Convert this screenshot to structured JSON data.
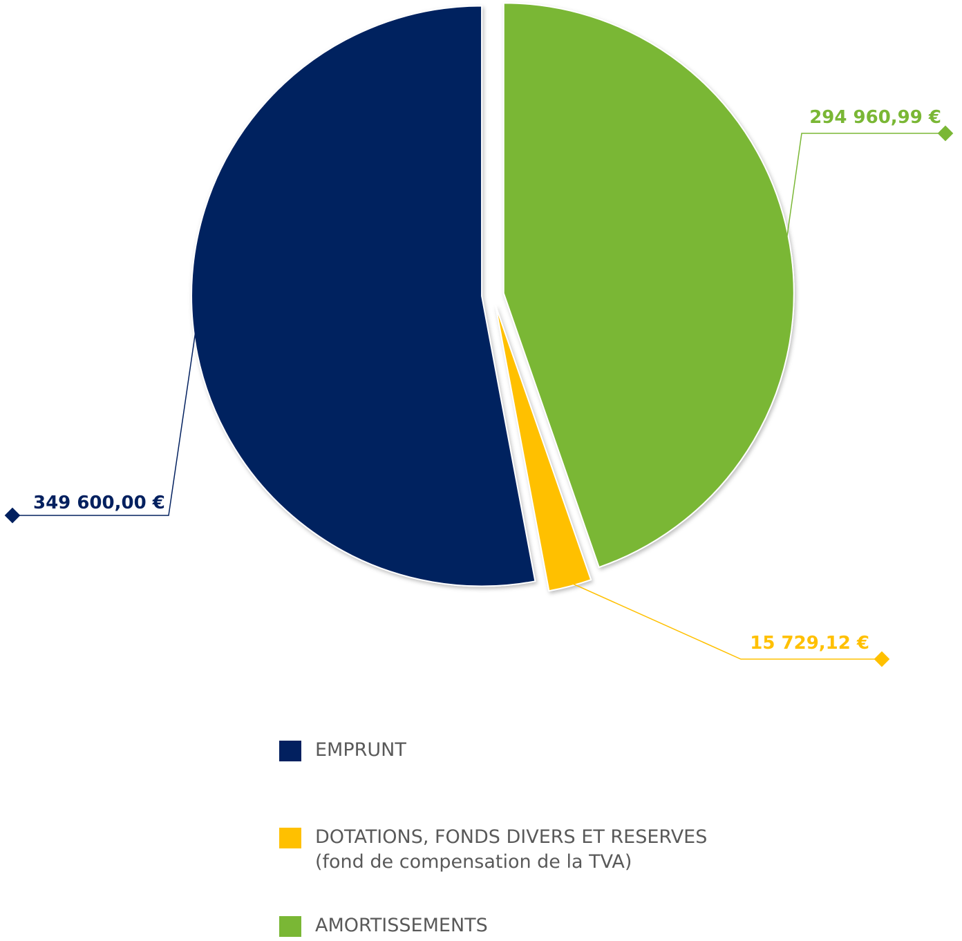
{
  "chart_data": {
    "type": "pie",
    "title": "",
    "slices": [
      {
        "name": "AMORTISSEMENTS",
        "value": 294960.99,
        "label": "294 960,99 €",
        "color": "#7AB735",
        "legend": [
          "AMORTISSEMENTS"
        ]
      },
      {
        "name": "DOTATIONS, FONDS DIVERS ET RESERVES (fond de compensation de la TVA)",
        "value": 15729.12,
        "label": "15 729,12 €",
        "color": "#FFC000",
        "legend": [
          "DOTATIONS, FONDS DIVERS ET RESERVES",
          "(fond de compensation de la TVA)"
        ]
      },
      {
        "name": "EMPRUNT",
        "value": 349600.0,
        "label": "349 600,00 €",
        "color": "#02205F",
        "legend": [
          "EMPRUNT"
        ]
      }
    ],
    "legend_placement": "bottom",
    "legend_order": [
      2,
      1,
      0
    ],
    "label_colors": {
      "AMORTISSEMENTS": "#7AB735",
      "DOTATIONS": "#FFC000",
      "EMPRUNT": "#02205F"
    }
  }
}
